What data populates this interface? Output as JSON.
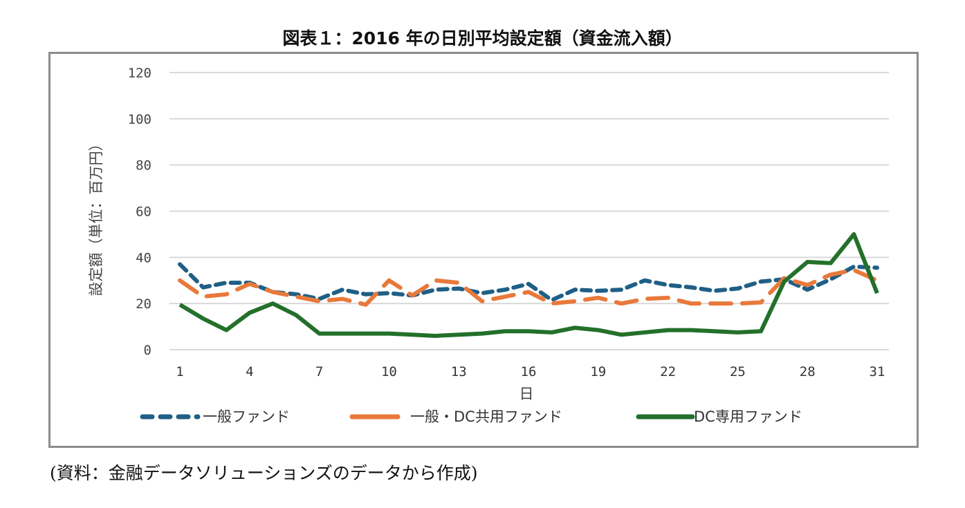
{
  "chart_data": {
    "type": "line",
    "title": "図表１：2016 年の日別平均設定額（資金流入額）",
    "xlabel": "日",
    "ylabel": "設定額（単位：百万円）",
    "ylim": [
      0,
      120
    ],
    "yticks": [
      0,
      20,
      40,
      60,
      80,
      100,
      120
    ],
    "xticks": [
      1,
      4,
      7,
      10,
      13,
      16,
      19,
      22,
      25,
      28,
      31
    ],
    "grid": true,
    "legend_position": "bottom",
    "x": [
      1,
      2,
      3,
      4,
      5,
      6,
      7,
      8,
      9,
      10,
      11,
      12,
      13,
      14,
      15,
      16,
      17,
      18,
      19,
      20,
      21,
      22,
      23,
      24,
      25,
      26,
      27,
      28,
      29,
      30,
      31
    ],
    "series": [
      {
        "name": "一般ファンド",
        "color": "#1f5f86",
        "style": "dotted",
        "values": [
          37,
          27,
          29,
          29,
          25,
          24,
          22,
          26,
          24,
          24.5,
          23.5,
          26,
          26.5,
          24.5,
          26,
          28.5,
          21.5,
          26,
          25.5,
          26,
          30,
          28,
          27,
          25.5,
          26.5,
          29.5,
          30.5,
          26,
          30.5,
          36,
          35.5
        ]
      },
      {
        "name": "一般・DC共用ファンド",
        "color": "#e8793a",
        "style": "dashed",
        "values": [
          30,
          23,
          24,
          28.5,
          25,
          23,
          21,
          22,
          19.5,
          30,
          23.5,
          30,
          29,
          21,
          23,
          25,
          20,
          21,
          22.5,
          20,
          22,
          22.5,
          20,
          20,
          20,
          20.5,
          31,
          28,
          32.5,
          34.5,
          30
        ]
      },
      {
        "name": "DC専用ファンド",
        "color": "#23702a",
        "style": "solid",
        "values": [
          19.5,
          13.5,
          8.5,
          16,
          20,
          15,
          7,
          7,
          7,
          7,
          6.5,
          6,
          6.5,
          7,
          8,
          8,
          7.5,
          9.5,
          8.5,
          6.5,
          7.5,
          8.5,
          8.5,
          8,
          7.5,
          8,
          29.5,
          38,
          37.5,
          50,
          24.5
        ]
      }
    ]
  },
  "caption": "(資料：金融データソリューションズのデータから作成)"
}
